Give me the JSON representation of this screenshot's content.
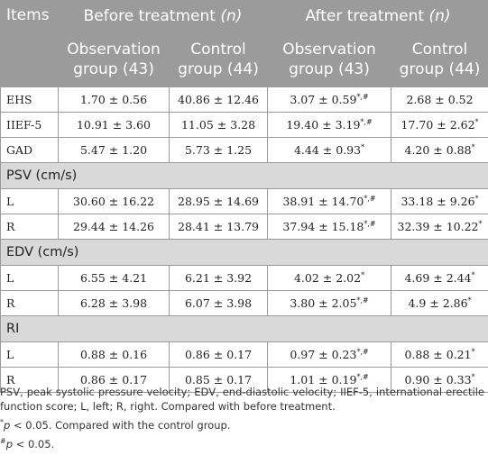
{
  "header": {
    "items": "Items",
    "before_label": "Before treatment",
    "after_label": "After treatment",
    "n_label": "(n)",
    "observation_group": "Observation group (43)",
    "control_group": "Control group (44)"
  },
  "rows_top": [
    {
      "label": "EHS",
      "b_obs": "1.70 ± 0.56",
      "b_ctrl": "40.86 ± 12.46",
      "a_obs": "3.07 ± 0.59",
      "a_obs_sup": "*,#",
      "a_ctrl": "2.68 ± 0.52",
      "a_ctrl_sup": ""
    },
    {
      "label": "IIEF-5",
      "b_obs": "10.91 ± 3.60",
      "b_ctrl": "11.05 ± 3.28",
      "a_obs": "19.40 ± 3.19",
      "a_obs_sup": "*,#",
      "a_ctrl": "17.70 ± 2.62",
      "a_ctrl_sup": "*"
    },
    {
      "label": "GAD",
      "b_obs": "5.47 ± 1.20",
      "b_ctrl": "5.73 ± 1.25",
      "a_obs": "4.44 ± 0.93",
      "a_obs_sup": "*",
      "a_ctrl": "4.20 ± 0.88",
      "a_ctrl_sup": "*"
    }
  ],
  "sections": [
    {
      "title": "PSV (cm/s)",
      "rows": [
        {
          "label": "L",
          "b_obs": "30.60 ± 16.22",
          "b_ctrl": "28.95 ± 14.69",
          "a_obs": "38.91 ± 14.70",
          "a_obs_sup": "*,#",
          "a_ctrl": "33.18 ± 9.26",
          "a_ctrl_sup": "*"
        },
        {
          "label": "R",
          "b_obs": "29.44 ± 14.26",
          "b_ctrl": "28.41 ± 13.79",
          "a_obs": "37.94 ± 15.18",
          "a_obs_sup": "*,#",
          "a_ctrl": "32.39 ± 10.22",
          "a_ctrl_sup": "*"
        }
      ]
    },
    {
      "title": "EDV (cm/s)",
      "rows": [
        {
          "label": "L",
          "b_obs": "6.55 ± 4.21",
          "b_ctrl": "6.21 ± 3.92",
          "a_obs": "4.02 ± 2.02",
          "a_obs_sup": "*",
          "a_ctrl": "4.69 ± 2.44",
          "a_ctrl_sup": "*"
        },
        {
          "label": "R",
          "b_obs": "6.28 ± 3.98",
          "b_ctrl": "6.07 ± 3.98",
          "a_obs": "3.80 ± 2.05",
          "a_obs_sup": "*,#",
          "a_ctrl": "4.9 ± 2.86",
          "a_ctrl_sup": "*"
        }
      ]
    },
    {
      "title": "RI",
      "rows": [
        {
          "label": "L",
          "b_obs": "0.88 ± 0.16",
          "b_ctrl": "0.86 ± 0.17",
          "a_obs": "0.97 ± 0.23",
          "a_obs_sup": "*,#",
          "a_ctrl": "0.88 ± 0.21",
          "a_ctrl_sup": "*"
        },
        {
          "label": "R",
          "b_obs": "0.86 ± 0.17",
          "b_ctrl": "0.85 ± 0.17",
          "a_obs": "1.01 ± 0.19",
          "a_obs_sup": "*,#",
          "a_ctrl": "0.90 ± 0.33",
          "a_ctrl_sup": "*"
        }
      ]
    }
  ],
  "notes": {
    "abbrev": "PSV, peak systolic pressure velocity; EDV, end-diastolic velocity; IIEF-5, international erectile function score; L, left; R, right. Compared with before treatment.",
    "star_mark": "*",
    "star_p": "p",
    "star_text": " < 0.05. Compared with the control group.",
    "hash_mark": "#",
    "hash_p": "p",
    "hash_text": " < 0.05."
  }
}
